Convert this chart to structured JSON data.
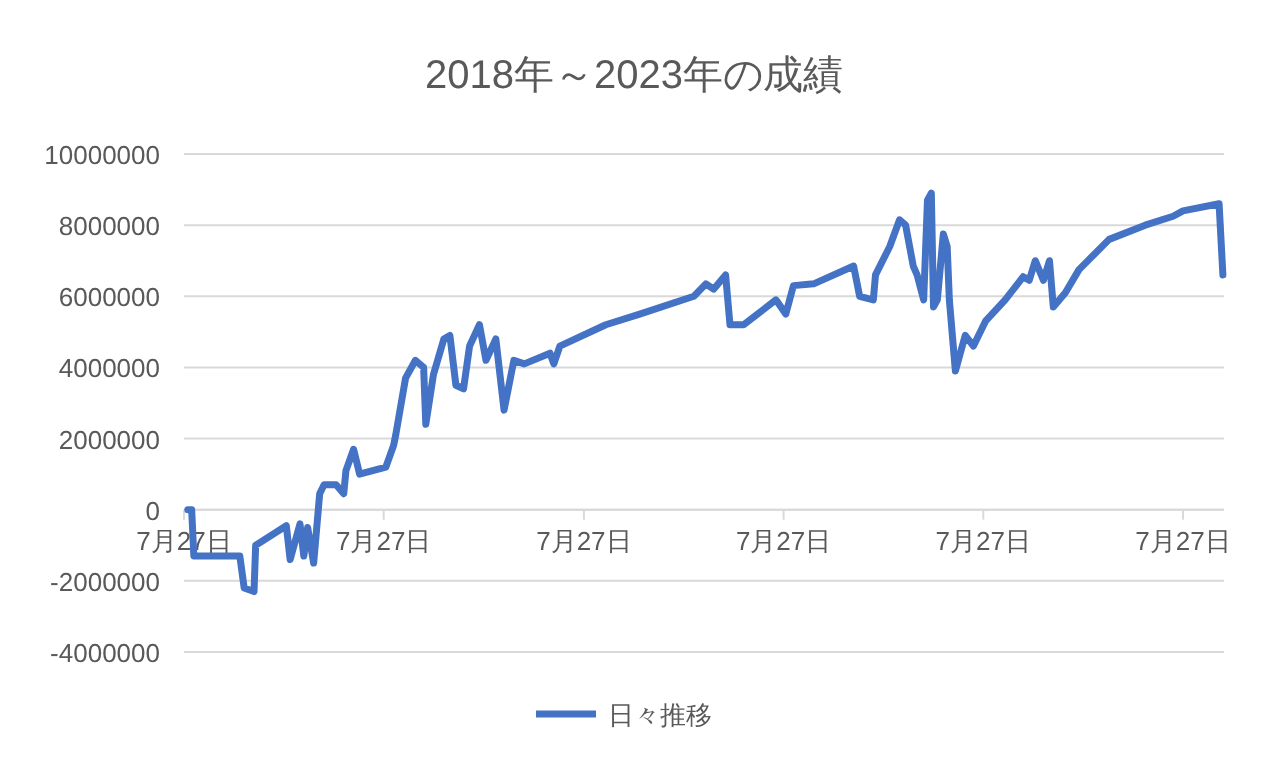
{
  "chart_data": {
    "type": "line",
    "title": "2018年～2023年の成績",
    "legend": "bottom",
    "grid": "y",
    "line_style": "solid",
    "marker": "none",
    "xlim": [
      "2018-07-27",
      "2023-10-10"
    ],
    "ylim": [
      -4000000,
      10000000
    ],
    "xticks": [
      {
        "value": "2018-07-27",
        "label": "7月27日"
      },
      {
        "value": "2019-07-27",
        "label": "7月27日"
      },
      {
        "value": "2020-07-27",
        "label": "7月27日"
      },
      {
        "value": "2021-07-27",
        "label": "7月27日"
      },
      {
        "value": "2022-07-27",
        "label": "7月27日"
      },
      {
        "value": "2023-07-27",
        "label": "7月27日"
      }
    ],
    "yticks": [
      -4000000,
      -2000000,
      0,
      2000000,
      4000000,
      6000000,
      8000000,
      10000000
    ],
    "series": [
      {
        "name": "日々推移",
        "color": "#4472c4",
        "x": [
          "2018-08-03",
          "2018-08-10",
          "2018-08-14",
          "2018-11-06",
          "2018-11-14",
          "2018-12-02",
          "2018-12-05",
          "2019-01-30",
          "2019-02-06",
          "2019-02-24",
          "2019-03-03",
          "2019-03-10",
          "2019-03-21",
          "2019-04-01",
          "2019-04-09",
          "2019-05-01",
          "2019-05-15",
          "2019-05-19",
          "2019-06-02",
          "2019-06-13",
          "2019-07-31",
          "2019-08-14",
          "2019-08-18",
          "2019-09-05",
          "2019-09-23",
          "2019-10-08",
          "2019-10-12",
          "2019-10-26",
          "2019-11-14",
          "2019-11-25",
          "2019-12-06",
          "2019-12-20",
          "2019-12-31",
          "2020-01-18",
          "2020-01-30",
          "2020-02-17",
          "2020-03-03",
          "2020-03-21",
          "2020-04-09",
          "2020-05-26",
          "2020-06-02",
          "2020-06-13",
          "2020-09-05",
          "2020-11-06",
          "2021-02-13",
          "2021-03-07",
          "2021-03-21",
          "2021-04-12",
          "2021-04-20",
          "2021-05-15",
          "2021-07-13",
          "2021-07-31",
          "2021-08-14",
          "2021-09-20",
          "2021-12-02",
          "2021-12-13",
          "2022-01-07",
          "2022-01-11",
          "2022-02-06",
          "2022-02-24",
          "2022-03-07",
          "2022-03-21",
          "2022-03-28",
          "2022-04-09",
          "2022-04-16",
          "2022-04-23",
          "2022-04-27",
          "2022-05-04",
          "2022-05-15",
          "2022-05-22",
          "2022-05-26",
          "2022-06-06",
          "2022-06-24",
          "2022-07-09",
          "2022-07-31",
          "2022-09-05",
          "2022-10-08",
          "2022-10-19",
          "2022-10-30",
          "2022-11-14",
          "2022-11-25",
          "2022-12-02",
          "2022-12-24",
          "2023-01-18",
          "2023-03-14",
          "2023-05-19",
          "2023-07-09",
          "2023-07-27",
          "2023-10-01",
          "2023-10-08"
        ],
        "values": [
          0,
          0,
          -1300000,
          -1300000,
          -2200000,
          -2300000,
          -1000000,
          -450000,
          -1400000,
          -400000,
          -1300000,
          -500000,
          -1500000,
          450000,
          700000,
          700000,
          450000,
          1100000,
          1700000,
          1000000,
          1200000,
          1800000,
          2100000,
          3700000,
          4200000,
          4000000,
          2400000,
          3800000,
          4800000,
          4900000,
          3500000,
          3400000,
          4600000,
          5200000,
          4200000,
          4800000,
          2800000,
          4200000,
          4100000,
          4400000,
          4100000,
          4600000,
          5200000,
          5500000,
          6000000,
          6350000,
          6200000,
          6600000,
          5200000,
          5200000,
          5900000,
          5500000,
          6300000,
          6350000,
          6850000,
          6000000,
          5900000,
          6600000,
          7400000,
          8150000,
          8000000,
          6850000,
          6600000,
          5900000,
          8700000,
          8900000,
          5700000,
          5900000,
          7750000,
          7400000,
          5900000,
          3900000,
          4900000,
          4600000,
          5300000,
          5900000,
          6550000,
          6450000,
          7000000,
          6450000,
          7000000,
          5700000,
          6100000,
          6750000,
          7600000,
          8000000,
          8250000,
          8400000,
          8600000,
          6600000
        ]
      }
    ]
  }
}
